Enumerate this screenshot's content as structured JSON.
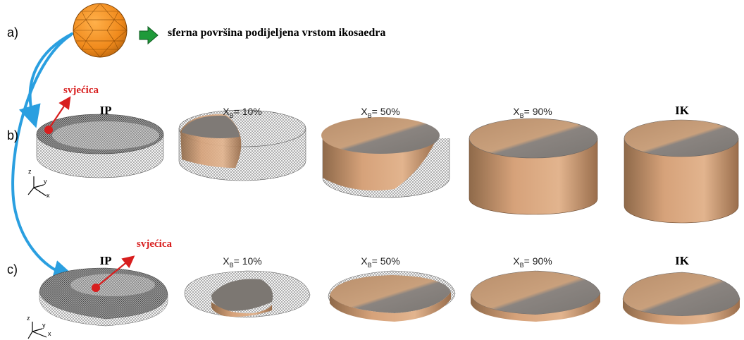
{
  "labels": {
    "row_a": "a)",
    "row_b": "b)",
    "row_c": "c)",
    "sphere_caption": "sferna površina podijeljena vrstom ikosaedra",
    "spark": "svjećica"
  },
  "rows": [
    {
      "id": "b",
      "stages": [
        {
          "title": "IP",
          "kind": "serif",
          "fill": 0.0
        },
        {
          "title_pre": "X",
          "title_sub": "B",
          "title_post": "= 10%",
          "kind": "xb",
          "fill": 0.1
        },
        {
          "title_pre": "X",
          "title_sub": "B",
          "title_post": "= 50%",
          "kind": "xb",
          "fill": 0.5
        },
        {
          "title_pre": "X",
          "title_sub": "B",
          "title_post": "= 90%",
          "kind": "xb",
          "fill": 0.9
        },
        {
          "title": "IK",
          "kind": "serif",
          "fill": 1.0
        }
      ]
    },
    {
      "id": "c",
      "stages": [
        {
          "title": "IP",
          "kind": "serif",
          "fill": 0.0
        },
        {
          "title_pre": "X",
          "title_sub": "B",
          "title_post": "= 10%",
          "kind": "xb",
          "fill": 0.1
        },
        {
          "title_pre": "X",
          "title_sub": "B",
          "title_post": "= 50%",
          "kind": "xb",
          "fill": 0.5
        },
        {
          "title_pre": "X",
          "title_sub": "B",
          "title_post": "= 90%",
          "kind": "xb",
          "fill": 0.9
        },
        {
          "title": "IK",
          "kind": "serif",
          "fill": 1.0
        }
      ]
    }
  ],
  "axes_labels": [
    "z",
    "y",
    "x"
  ],
  "colors": {
    "sphere": "#f08a1c",
    "sphere_edge": "#7a3e00",
    "green_arrow": "#1f9a3a",
    "blue_arrow": "#2a9fe0",
    "spark": "#d81e1e",
    "burned": "#c89468",
    "mesh": "#555555"
  }
}
